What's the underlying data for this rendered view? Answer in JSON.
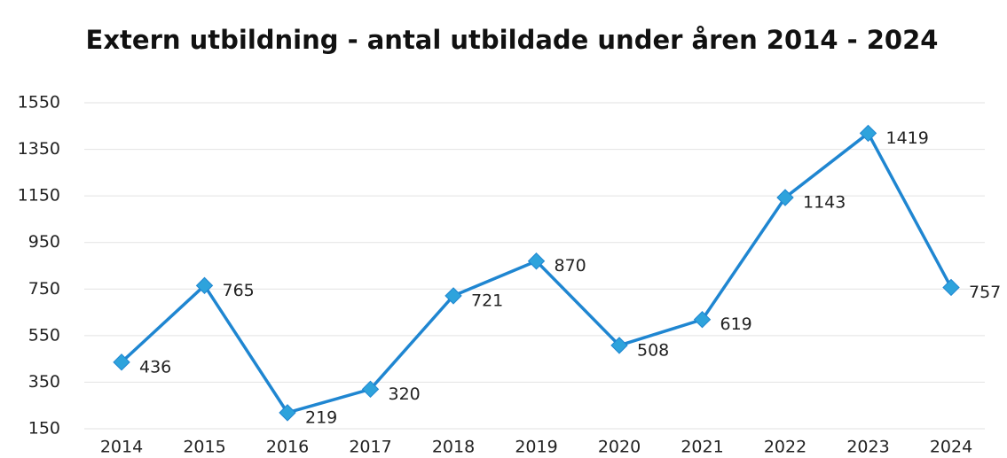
{
  "chart_data": {
    "type": "line",
    "title": "Extern utbildning - antal utbildade under åren 2014 - 2024",
    "categories": [
      "2014",
      "2015",
      "2016",
      "2017",
      "2018",
      "2019",
      "2020",
      "2021",
      "2022",
      "2023",
      "2024"
    ],
    "values": [
      436,
      765,
      219,
      320,
      721,
      870,
      508,
      619,
      1143,
      1419,
      757
    ],
    "color": "#1f86d1",
    "marker_color": "#2ea3dc",
    "ylim": [
      150,
      1550
    ],
    "yticks": [
      150,
      350,
      550,
      750,
      950,
      1150,
      1350,
      1550
    ],
    "grid": true
  }
}
